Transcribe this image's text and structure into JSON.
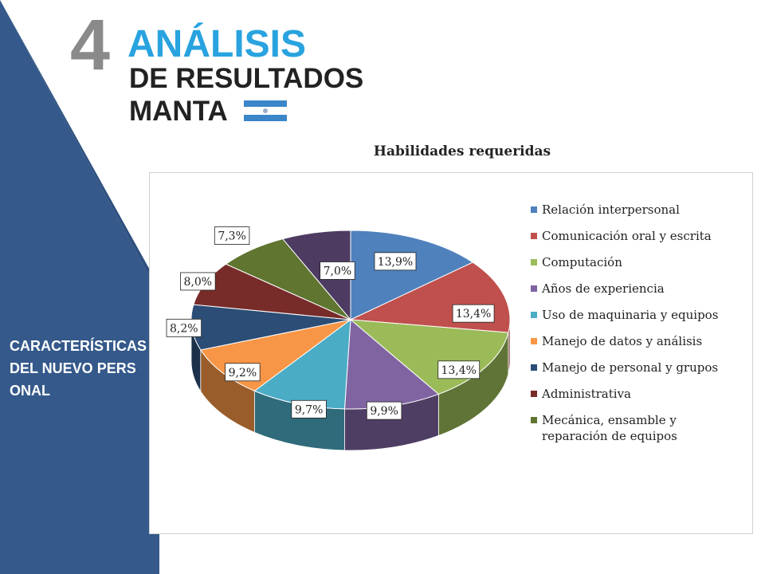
{
  "header": {
    "number": "4",
    "title_line1": "ANÁLISIS",
    "title_line2": "DE RESULTADOS",
    "title_line3": "MANTA"
  },
  "sidebar": {
    "label": "CARACTERÍSTICAS DEL NUEVO PERSONAL",
    "color": "#34598a"
  },
  "flag": {
    "colors": [
      "#3a86c8",
      "#ffffff",
      "#3a86c8"
    ],
    "icon": "manta-flag-icon"
  },
  "chart_data": {
    "type": "pie",
    "title": "Habilidades requeridas",
    "categories": [
      "Relación interpersonal",
      "Comunicación oral y escrita",
      "Computación",
      "Años de experiencia",
      "Uso de maquinaria y equipos",
      "Manejo de datos y análisis",
      "Manejo de personal y grupos",
      "Administrativa",
      "Mecánica, ensamble y reparación de equipos",
      ""
    ],
    "values": [
      13.9,
      13.4,
      13.4,
      9.9,
      9.7,
      9.2,
      8.2,
      8.0,
      7.3,
      7.0
    ],
    "labels": [
      "13,9%",
      "13,4%",
      "13,4%",
      "9,9%",
      "9,7%",
      "9,2%",
      "8,2%",
      "8,0%",
      "7,3%",
      "7,0%"
    ],
    "colors": [
      "#4f81bd",
      "#c0504d",
      "#9bbb59",
      "#8064a2",
      "#4bacc6",
      "#f79646",
      "#2c4d75",
      "#772c2a",
      "#5f7530",
      "#4d3b62"
    ],
    "legend_position": "right",
    "style": "3d"
  }
}
